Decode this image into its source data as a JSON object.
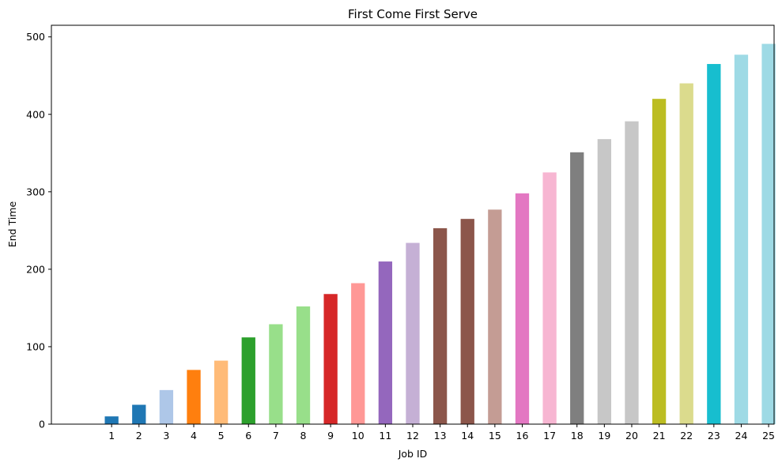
{
  "chart_data": {
    "type": "bar",
    "title": "First Come First Serve",
    "xlabel": "Job ID",
    "ylabel": "End Time",
    "ylim": [
      0,
      515
    ],
    "yticks": [
      0,
      100,
      200,
      300,
      400,
      500
    ],
    "grid": false,
    "legend": "none",
    "categories": [
      "1",
      "2",
      "3",
      "4",
      "5",
      "6",
      "7",
      "8",
      "9",
      "10",
      "11",
      "12",
      "13",
      "14",
      "15",
      "16",
      "17",
      "18",
      "19",
      "20",
      "21",
      "22",
      "23",
      "24",
      "25"
    ],
    "values": [
      10,
      25,
      44,
      70,
      82,
      112,
      129,
      152,
      168,
      182,
      210,
      234,
      253,
      265,
      277,
      298,
      325,
      351,
      368,
      391,
      420,
      440,
      465,
      477,
      491
    ],
    "colors": [
      "#1f77b4",
      "#1f77b4",
      "#aec7e8",
      "#ff7f0e",
      "#ffbb78",
      "#2ca02c",
      "#98df8a",
      "#98df8a",
      "#d62728",
      "#ff9896",
      "#9467bd",
      "#c5b0d5",
      "#8c564b",
      "#8c564b",
      "#c49c94",
      "#e377c2",
      "#f7b6d2",
      "#7f7f7f",
      "#c7c7c7",
      "#c7c7c7",
      "#bcbd22",
      "#dbdb8d",
      "#17becf",
      "#9edae5",
      "#9edae5"
    ]
  }
}
